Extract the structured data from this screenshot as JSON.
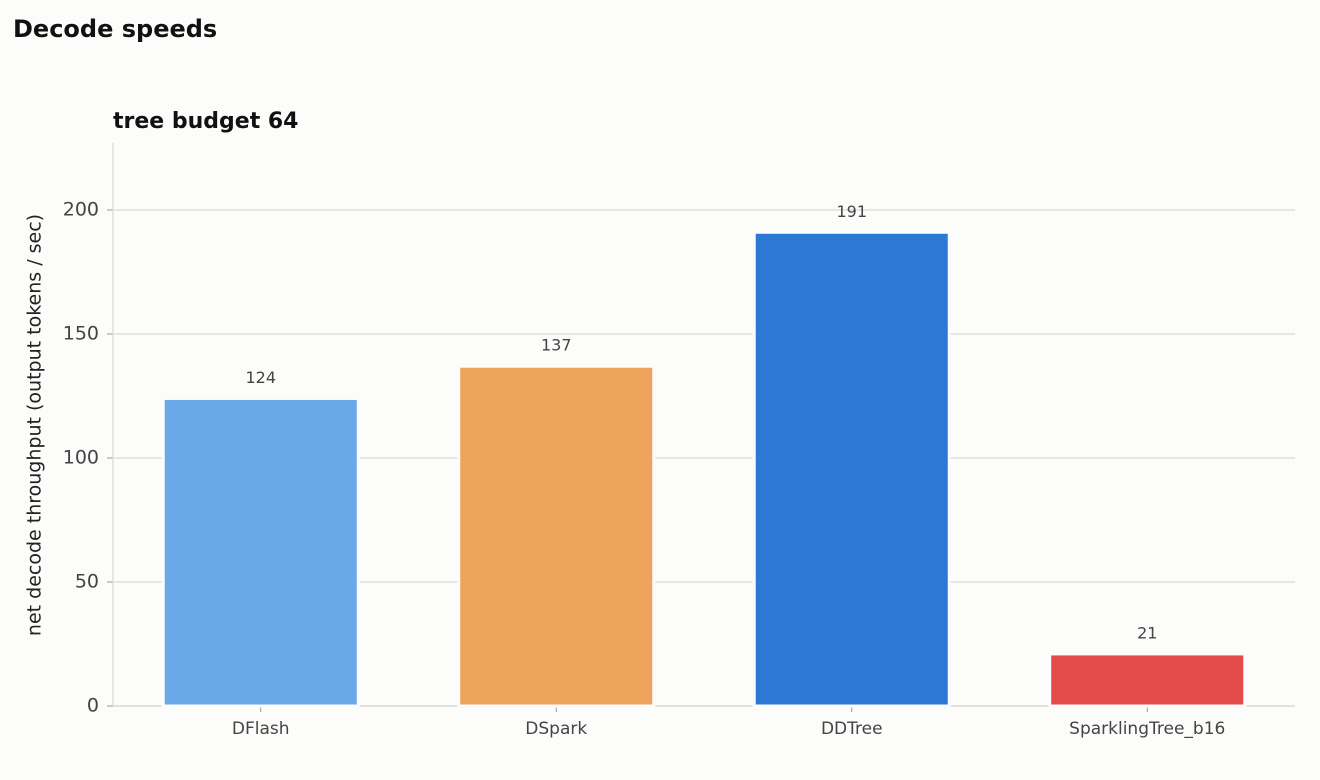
{
  "chart_data": {
    "type": "bar",
    "title": "Decode speeds",
    "subtitle": "tree budget 64",
    "y_label": "net decode throughput (output tokens / sec)",
    "categories": [
      "DFlash",
      "DSpark",
      "DDTree",
      "SparklingTree_b16"
    ],
    "values": [
      124,
      137,
      191,
      21
    ],
    "colors": [
      "#6aa9e8",
      "#efa45e",
      "#2b79d5",
      "#e34b4b"
    ],
    "ylim": [
      0,
      227
    ],
    "yticks": [
      0,
      50,
      100,
      150,
      200
    ],
    "grid": true
  }
}
